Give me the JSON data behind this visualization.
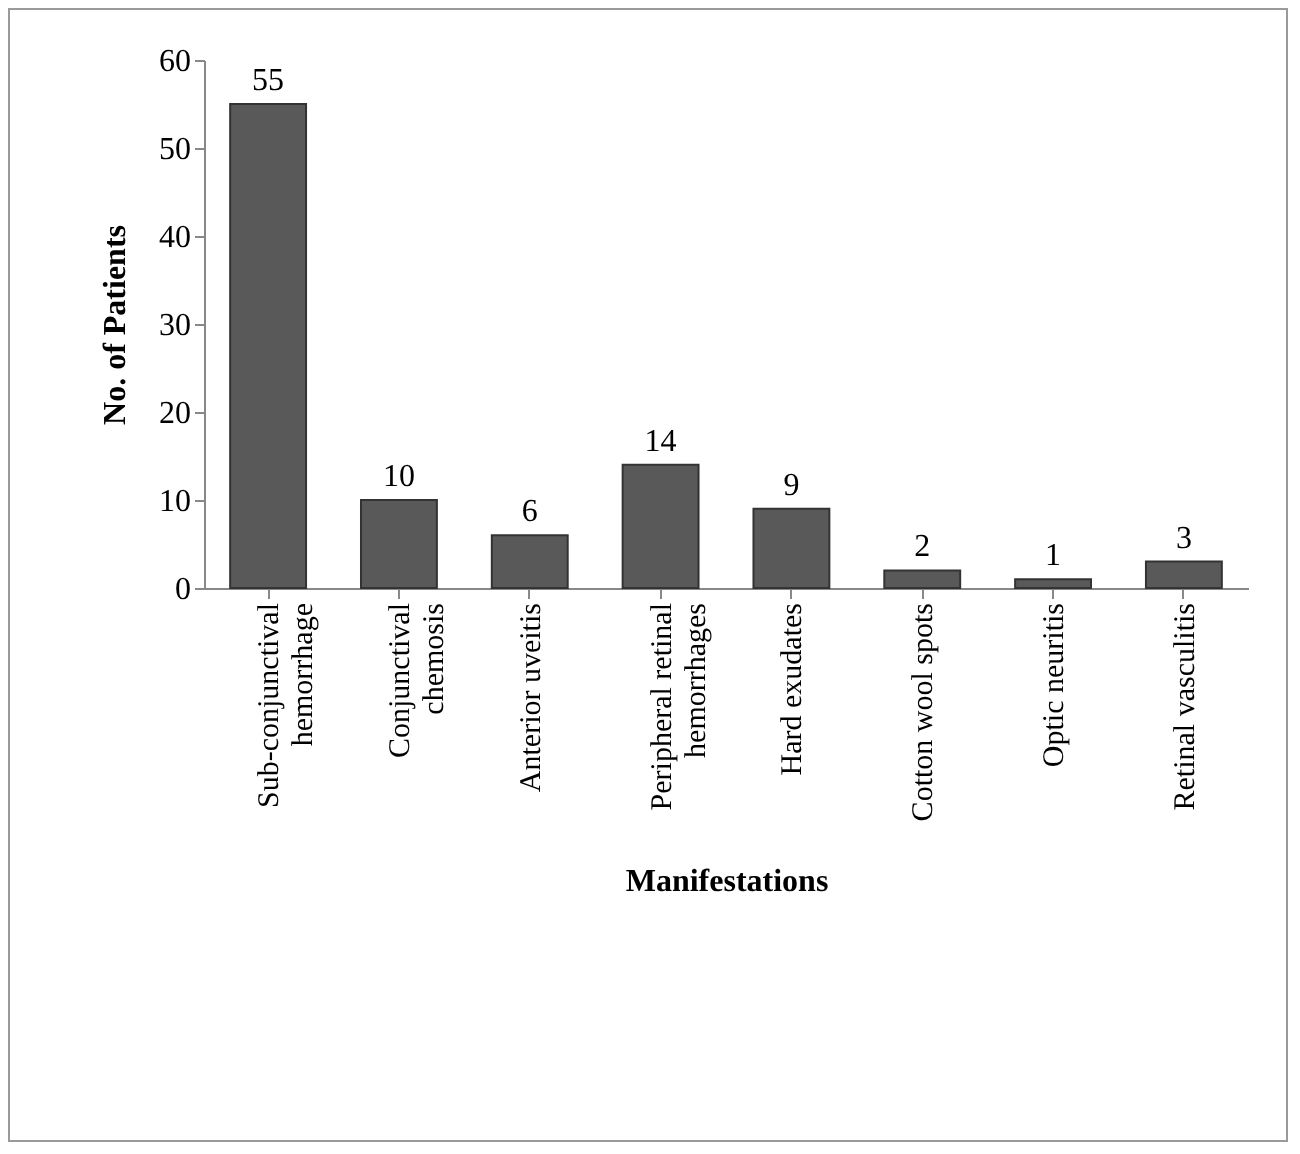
{
  "chart_data": {
    "type": "bar",
    "xlabel": "Manifestations",
    "ylabel": "No. of Patients",
    "categories": [
      "Sub-conjunctival hemorrhage",
      "Conjunctival chemosis",
      "Anterior uveitis",
      "Peripheral retinal hemorrhages",
      "Hard exudates",
      "Cotton wool spots",
      "Optic neuritis",
      "Retinal vasculitis"
    ],
    "values": [
      55,
      10,
      6,
      14,
      9,
      2,
      1,
      3
    ],
    "color": "#595959",
    "ylim": [
      0,
      60
    ],
    "yticks": [
      0,
      10,
      20,
      30,
      40,
      50,
      60
    ],
    "data_labels": true,
    "grid": false
  }
}
